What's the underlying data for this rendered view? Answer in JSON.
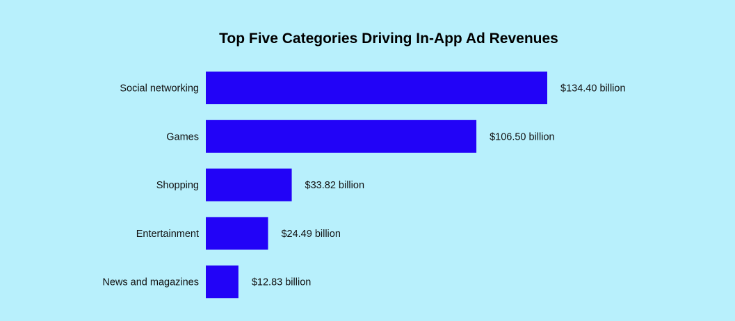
{
  "chart_data": {
    "type": "bar",
    "orientation": "horizontal",
    "title": "Top Five Categories Driving In-App Ad Revenues",
    "categories": [
      "Social networking",
      "Games",
      "Shopping",
      "Entertainment",
      "News and magazines"
    ],
    "values": [
      134.4,
      106.5,
      33.82,
      24.49,
      12.83
    ],
    "value_labels": [
      "$134.40 billion",
      "$106.50 billion",
      "$33.82 billion",
      "$24.49 billion",
      "$12.83 billion"
    ],
    "xlabel": "",
    "ylabel": "",
    "xlim": [
      0,
      134.4
    ],
    "grid": false,
    "legend": "none"
  },
  "colors": {
    "background": "#b8f0fc",
    "bar": "#2203f7",
    "text": "#111111"
  }
}
